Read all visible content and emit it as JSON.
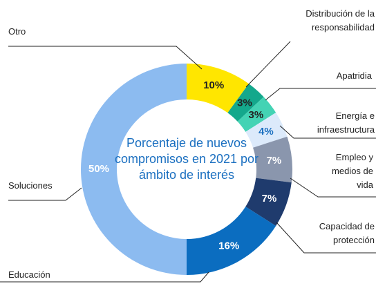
{
  "chart_data": {
    "type": "donut",
    "title": "Porcentaje de nuevos compromisos en 2021 por ámbito de interés",
    "categories": [
      "Otro",
      "Distribución de la responsabilidad",
      "Apatridia",
      "Energía e infraestructura",
      "Empleo y medios de vida",
      "Capacidad de protección",
      "Educación",
      "Soluciones"
    ],
    "values": [
      10,
      3,
      3,
      4,
      7,
      7,
      16,
      50
    ],
    "value_labels": [
      "10%",
      "3%",
      "3%",
      "4%",
      "7%",
      "7%",
      "16%",
      "50%"
    ],
    "colors": [
      "#ffe600",
      "#14a88c",
      "#44d3b4",
      "#dceafb",
      "#8a96ad",
      "#1f3b6d",
      "#0b6dc0",
      "#8cbbf0"
    ],
    "label_colors": [
      "#222222",
      "#222222",
      "#222222",
      "#1a6fc0",
      "#ffffff",
      "#ffffff",
      "#ffffff",
      "#ffffff"
    ]
  }
}
